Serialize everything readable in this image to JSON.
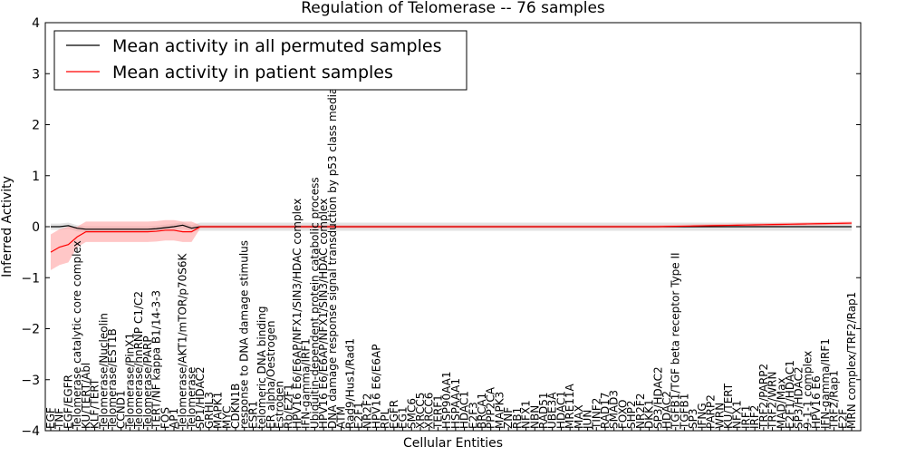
{
  "chart_data": {
    "type": "line",
    "title": "Regulation of Telomerase -- 76 samples",
    "xlabel": "Cellular Entities",
    "ylabel": "Inferred Activity",
    "ylim": [
      -4,
      4
    ],
    "yticks": [
      -4,
      -3,
      -2,
      -1,
      0,
      1,
      2,
      3,
      4
    ],
    "grid": false,
    "legend_position": "top-left",
    "categories": [
      "EGF",
      "TNF",
      "EGF/EGFR",
      "Telomerase catalytic core complex",
      "KU/TERT/Abl",
      "KLF/TERT",
      "Telomerase/Nucleolin",
      "Telomerase/EST1B",
      "CCND1",
      "Telomerase/PinX1",
      "Telomerase/hnRNP C1/C2",
      "Telomerase/PARP",
      "TERT/NF kappa B1/14-3-3",
      "FOS",
      "AP1",
      "Telomerase/AKT1/mTOR/p70S6K",
      "Telomerase",
      "SP1/HDAC2",
      "GRHL3",
      "MAPK1",
      "MYC",
      "CDKN1B",
      "response to DNA damage stimulus",
      "ESR1",
      "telomeric DNA binding",
      "ER alpha/Oestrogen",
      "Estrogen",
      "Rb/E2F1",
      "HPV16 E6/E6AP/NFX1/SIN3/HDAC complex",
      "IFN-gamma/IRF1",
      "Ubiquitin-dependent protein catabolic process",
      "HPV16 E6/E6AP/NFX1/SIN3/HDAC complex",
      "DNA damage response signal transduction by p53 class mediator",
      "ATM",
      "Rad9/Hus1/Rad1",
      "E2F1",
      "NR2F2",
      "HPV16 E6/E6AP",
      "RPL",
      "EGFR",
      "EG1",
      "SMC6",
      "XRCC5",
      "XRCC6",
      "TERF1",
      "HSP90AA1",
      "HSPAAA1",
      "HDAC1",
      "E2F3",
      "BRCA1",
      "PPP2CA",
      "MAPK3",
      "ZNF",
      "RB1",
      "NFX1",
      "NBN",
      "RAD51",
      "UBE3A",
      "HDAC1",
      "MRE11A",
      "MAX",
      "JUN",
      "TINF2",
      "RAD17",
      "SMAD3",
      "FOXO",
      "SHP2",
      "NR2F2",
      "DKK1",
      "SP3/HDAC2",
      "HDAC2",
      "TGFB1/TGF beta receptor Type II",
      "TGFB1",
      "SP3",
      "IFNG",
      "PARP2",
      "WRN",
      "KU/TERT",
      "NFX1",
      "IRF1",
      "IRF2",
      "TRF2/PARP2",
      "TRF2/WRN",
      "MAD/Max",
      "E2F1/HDAC1",
      "SP3/HDAC2",
      "9-1-1 complex",
      "HPV16 E6",
      "IFN-gamma/IRF1",
      "TRF2/Rap1",
      "E2F",
      "MRN complex/TRF2/Rap1"
    ],
    "series": [
      {
        "name": "Mean activity in all permuted samples",
        "color": "#000000",
        "values_head": [
          0.0,
          0.0,
          0.02,
          -0.03,
          -0.05,
          -0.05,
          -0.05,
          -0.05,
          -0.05,
          -0.05,
          -0.05,
          -0.05,
          -0.04,
          -0.02,
          0.0,
          0.03,
          -0.03
        ],
        "tail_value": 0.0,
        "band": [
          -0.12,
          0.1
        ],
        "band_color": "#cccccc"
      },
      {
        "name": "Mean activity in patient samples",
        "color": "#ff0000",
        "values_head": [
          -0.5,
          -0.4,
          -0.35,
          -0.2,
          -0.1,
          -0.1,
          -0.1,
          -0.1,
          -0.1,
          -0.1,
          -0.1,
          -0.1,
          -0.09,
          -0.07,
          -0.07,
          -0.1,
          -0.1
        ],
        "tail_value": 0.0,
        "end_value": 0.07,
        "band": [
          -0.55,
          0.05
        ],
        "band_color": "#ff9999"
      }
    ]
  }
}
